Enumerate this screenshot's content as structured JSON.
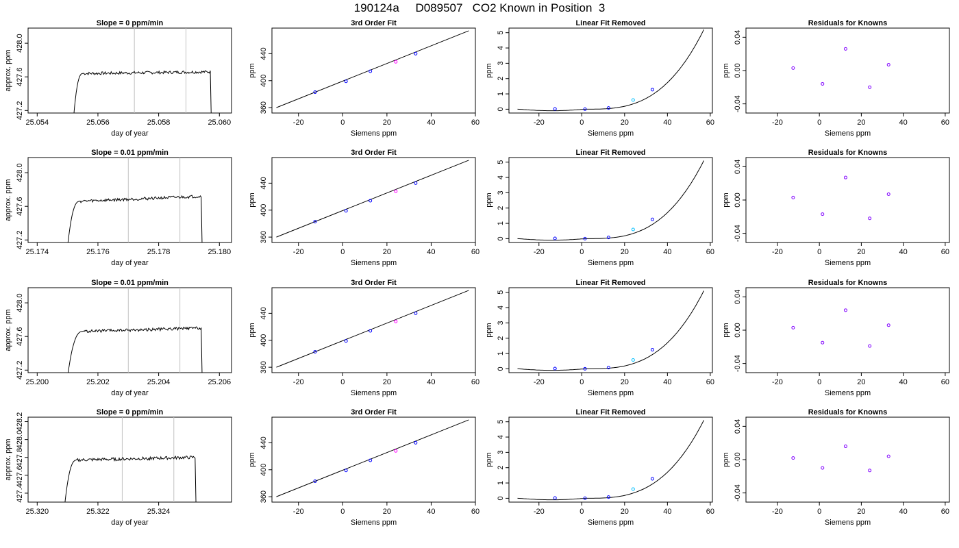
{
  "page_title": "190124a     D089507   CO2 Known in Position  3",
  "chart_data": [
    {
      "panel": "trace",
      "row": 0,
      "type": "line",
      "title": "Slope =  0  ppm/min",
      "xlabel": "day of year",
      "ylabel": "approx. ppm",
      "xlim": [
        25.0537,
        25.0604
      ],
      "ylim": [
        427.17,
        428.18
      ],
      "xticks": [
        25.054,
        25.056,
        25.058,
        25.06
      ],
      "xticklabels": [
        "25.054",
        "25.056",
        "25.058",
        "25.060"
      ],
      "yticks": [
        427.2,
        427.6,
        428.0
      ],
      "yticklabels": [
        "427.2",
        "427.6",
        "428.0"
      ],
      "vlines": [
        25.0572,
        25.0589
      ],
      "start": 25.0552,
      "rise_end": 25.0555,
      "end": 25.0597,
      "level": 427.64,
      "peak": 427.66,
      "drop_to": 427.15,
      "colors": {
        "trace": "#000000",
        "vline": "#c0c0c0"
      }
    },
    {
      "panel": "fit",
      "row": 0,
      "type": "line",
      "title": "3rd Order Fit",
      "xlabel": "Siemens ppm",
      "ylabel": "ppm",
      "xlim": [
        -32,
        60
      ],
      "ylim": [
        352,
        478
      ],
      "xticks": [
        -20,
        0,
        20,
        40,
        60
      ],
      "yticks": [
        360,
        400,
        440
      ],
      "points": [
        {
          "x": -12.5,
          "y": 383
        },
        {
          "x": 1.5,
          "y": 399
        },
        {
          "x": 12.5,
          "y": 414
        },
        {
          "x": 24.0,
          "y": 428
        },
        {
          "x": 33.0,
          "y": 440
        }
      ],
      "line": {
        "x0": -30,
        "y0": 360,
        "x1": 57,
        "y1": 474
      },
      "colors": {
        "line": "#000000",
        "point": "#0000ff",
        "highlight": "#ff00ff"
      }
    },
    {
      "panel": "linear_removed",
      "row": 0,
      "type": "line",
      "title": "Linear Fit Removed",
      "xlabel": "Siemens ppm",
      "ylabel": "ppm",
      "xlim": [
        -34,
        61
      ],
      "ylim": [
        -0.25,
        5.3
      ],
      "xticks": [
        -20,
        0,
        20,
        40,
        60
      ],
      "yticks": [
        0,
        1,
        2,
        3,
        4,
        5
      ],
      "points": [
        {
          "x": -12.5,
          "y": 0.02
        },
        {
          "x": 1.5,
          "y": 0.0
        },
        {
          "x": 12.5,
          "y": 0.08
        },
        {
          "x": 24.0,
          "y": 0.6
        },
        {
          "x": 33.0,
          "y": 1.28
        }
      ],
      "curve": {
        "x_start": -30,
        "x_end": 57,
        "y_end": 5.2
      },
      "colors": {
        "curve": "#000000",
        "point": "#0000ff",
        "highlight": "#00bfff"
      }
    },
    {
      "panel": "residuals",
      "row": 0,
      "type": "scatter",
      "title": "Residuals for Knowns",
      "xlabel": "Siemens ppm",
      "ylabel": "ppm",
      "xlim": [
        -35,
        62
      ],
      "ylim": [
        -0.051,
        0.051
      ],
      "xticks": [
        -20,
        0,
        20,
        40,
        60
      ],
      "yticks": [
        -0.04,
        0.0,
        0.04
      ],
      "yticklabels": [
        "-0.04",
        "0.00",
        "0.04"
      ],
      "points": [
        {
          "x": -12.5,
          "y": 0.003
        },
        {
          "x": 1.5,
          "y": -0.016
        },
        {
          "x": 12.5,
          "y": 0.026
        },
        {
          "x": 24.0,
          "y": -0.02
        },
        {
          "x": 33.0,
          "y": 0.007
        }
      ],
      "colors": {
        "point": "#8000ff"
      }
    },
    {
      "panel": "trace",
      "row": 1,
      "type": "line",
      "title": "Slope =  0.01  ppm/min",
      "xlabel": "day of year",
      "ylabel": "approx. ppm",
      "xlim": [
        25.1737,
        25.1804
      ],
      "ylim": [
        427.17,
        428.18
      ],
      "xticks": [
        25.174,
        25.176,
        25.178,
        25.18
      ],
      "xticklabels": [
        "25.174",
        "25.176",
        "25.178",
        "25.180"
      ],
      "yticks": [
        427.2,
        427.6,
        428.0
      ],
      "yticklabels": [
        "427.2",
        "427.6",
        "428.0"
      ],
      "vlines": [
        25.177,
        25.1787
      ],
      "start": 25.175,
      "rise_end": 25.1754,
      "end": 25.1794,
      "level": 427.66,
      "peak": 427.72,
      "drop_to": 427.15,
      "colors": {
        "trace": "#000000",
        "vline": "#c0c0c0"
      }
    },
    {
      "panel": "fit",
      "row": 1,
      "type": "line",
      "title": "3rd Order Fit",
      "xlabel": "Siemens ppm",
      "ylabel": "ppm",
      "xlim": [
        -32,
        60
      ],
      "ylim": [
        352,
        478
      ],
      "xticks": [
        -20,
        0,
        20,
        40,
        60
      ],
      "yticks": [
        360,
        400,
        440
      ],
      "points": [
        {
          "x": -12.5,
          "y": 383
        },
        {
          "x": 1.5,
          "y": 399
        },
        {
          "x": 12.5,
          "y": 414
        },
        {
          "x": 24.0,
          "y": 428
        },
        {
          "x": 33.0,
          "y": 440
        }
      ],
      "line": {
        "x0": -30,
        "y0": 360,
        "x1": 57,
        "y1": 474
      },
      "colors": {
        "line": "#000000",
        "point": "#0000ff",
        "highlight": "#ff00ff"
      }
    },
    {
      "panel": "linear_removed",
      "row": 1,
      "type": "line",
      "title": "Linear Fit Removed",
      "xlabel": "Siemens ppm",
      "ylabel": "ppm",
      "xlim": [
        -34,
        61
      ],
      "ylim": [
        -0.25,
        5.3
      ],
      "xticks": [
        -20,
        0,
        20,
        40,
        60
      ],
      "yticks": [
        0,
        1,
        2,
        3,
        4,
        5
      ],
      "points": [
        {
          "x": -12.5,
          "y": 0.02
        },
        {
          "x": 1.5,
          "y": 0.0
        },
        {
          "x": 12.5,
          "y": 0.08
        },
        {
          "x": 24.0,
          "y": 0.6
        },
        {
          "x": 33.0,
          "y": 1.26
        }
      ],
      "curve": {
        "x_start": -30,
        "x_end": 57,
        "y_end": 5.1
      },
      "colors": {
        "curve": "#000000",
        "point": "#0000ff",
        "highlight": "#00bfff"
      }
    },
    {
      "panel": "residuals",
      "row": 1,
      "type": "scatter",
      "title": "Residuals for Knowns",
      "xlabel": "Siemens ppm",
      "ylabel": "ppm",
      "xlim": [
        -35,
        62
      ],
      "ylim": [
        -0.051,
        0.051
      ],
      "xticks": [
        -20,
        0,
        20,
        40,
        60
      ],
      "yticks": [
        -0.04,
        0.0,
        0.04
      ],
      "yticklabels": [
        "-0.04",
        "0.00",
        "0.04"
      ],
      "points": [
        {
          "x": -12.5,
          "y": 0.003
        },
        {
          "x": 1.5,
          "y": -0.017
        },
        {
          "x": 12.5,
          "y": 0.027
        },
        {
          "x": 24.0,
          "y": -0.022
        },
        {
          "x": 33.0,
          "y": 0.007
        }
      ],
      "colors": {
        "point": "#8000ff"
      }
    },
    {
      "panel": "trace",
      "row": 2,
      "type": "line",
      "title": "Slope =  0.01  ppm/min",
      "xlabel": "day of year",
      "ylabel": "approx. ppm",
      "xlim": [
        25.1997,
        25.2064
      ],
      "ylim": [
        427.17,
        428.18
      ],
      "xticks": [
        25.2,
        25.202,
        25.204,
        25.206
      ],
      "xticklabels": [
        "25.200",
        "25.202",
        "25.204",
        "25.206"
      ],
      "yticks": [
        427.2,
        427.6,
        428.0
      ],
      "yticklabels": [
        "427.2",
        "427.6",
        "428.0"
      ],
      "vlines": [
        25.203,
        25.2047
      ],
      "start": 25.201,
      "rise_end": 25.2015,
      "end": 25.2054,
      "level": 427.66,
      "peak": 427.7,
      "drop_to": 427.15,
      "colors": {
        "trace": "#000000",
        "vline": "#c0c0c0"
      }
    },
    {
      "panel": "fit",
      "row": 2,
      "type": "line",
      "title": "3rd Order Fit",
      "xlabel": "Siemens ppm",
      "ylabel": "ppm",
      "xlim": [
        -32,
        60
      ],
      "ylim": [
        352,
        478
      ],
      "xticks": [
        -20,
        0,
        20,
        40,
        60
      ],
      "yticks": [
        360,
        400,
        440
      ],
      "points": [
        {
          "x": -12.5,
          "y": 383
        },
        {
          "x": 1.5,
          "y": 399
        },
        {
          "x": 12.5,
          "y": 414
        },
        {
          "x": 24.0,
          "y": 428
        },
        {
          "x": 33.0,
          "y": 440
        }
      ],
      "line": {
        "x0": -30,
        "y0": 360,
        "x1": 57,
        "y1": 474
      },
      "colors": {
        "line": "#000000",
        "point": "#0000ff",
        "highlight": "#ff00ff"
      }
    },
    {
      "panel": "linear_removed",
      "row": 2,
      "type": "line",
      "title": "Linear Fit Removed",
      "xlabel": "Siemens ppm",
      "ylabel": "ppm",
      "xlim": [
        -34,
        61
      ],
      "ylim": [
        -0.25,
        5.3
      ],
      "xticks": [
        -20,
        0,
        20,
        40,
        60
      ],
      "yticks": [
        0,
        1,
        2,
        3,
        4,
        5
      ],
      "points": [
        {
          "x": -12.5,
          "y": 0.02
        },
        {
          "x": 1.5,
          "y": 0.0
        },
        {
          "x": 12.5,
          "y": 0.08
        },
        {
          "x": 24.0,
          "y": 0.58
        },
        {
          "x": 33.0,
          "y": 1.25
        }
      ],
      "curve": {
        "x_start": -30,
        "x_end": 57,
        "y_end": 5.1
      },
      "colors": {
        "curve": "#000000",
        "point": "#0000ff",
        "highlight": "#00bfff"
      }
    },
    {
      "panel": "residuals",
      "row": 2,
      "type": "scatter",
      "title": "Residuals for Knowns",
      "xlabel": "Siemens ppm",
      "ylabel": "ppm",
      "xlim": [
        -35,
        62
      ],
      "ylim": [
        -0.051,
        0.051
      ],
      "xticks": [
        -20,
        0,
        20,
        40,
        60
      ],
      "yticks": [
        -0.04,
        0.0,
        0.04
      ],
      "yticklabels": [
        "-0.04",
        "0.00",
        "0.04"
      ],
      "points": [
        {
          "x": -12.5,
          "y": 0.003
        },
        {
          "x": 1.5,
          "y": -0.015
        },
        {
          "x": 12.5,
          "y": 0.024
        },
        {
          "x": 24.0,
          "y": -0.019
        },
        {
          "x": 33.0,
          "y": 0.006
        }
      ],
      "colors": {
        "point": "#8000ff"
      }
    },
    {
      "panel": "trace",
      "row": 3,
      "type": "line",
      "title": "Slope =  0  ppm/min",
      "xlabel": "day of year",
      "ylabel": "approx. ppm",
      "xlim": [
        25.3197,
        25.3264
      ],
      "ylim": [
        427.3,
        428.25
      ],
      "xticks": [
        25.32,
        25.322,
        25.324
      ],
      "xticklabels": [
        "25.320",
        "25.322",
        "25.324"
      ],
      "yticks": [
        427.4,
        427.6,
        427.8,
        428.0,
        428.2
      ],
      "yticklabels": [
        "427.4",
        "427.6",
        "427.8",
        "428.0",
        "428.2"
      ],
      "vlines": [
        25.3228,
        25.3245
      ],
      "start": 25.3209,
      "rise_end": 25.3213,
      "end": 25.3252,
      "level": 427.77,
      "peak": 427.8,
      "drop_to": 427.28,
      "colors": {
        "trace": "#000000",
        "vline": "#c0c0c0"
      }
    },
    {
      "panel": "fit",
      "row": 3,
      "type": "line",
      "title": "3rd Order Fit",
      "xlabel": "Siemens ppm",
      "ylabel": "ppm",
      "xlim": [
        -32,
        60
      ],
      "ylim": [
        352,
        478
      ],
      "xticks": [
        -20,
        0,
        20,
        40,
        60
      ],
      "yticks": [
        360,
        400,
        440
      ],
      "points": [
        {
          "x": -12.5,
          "y": 383
        },
        {
          "x": 1.5,
          "y": 399
        },
        {
          "x": 12.5,
          "y": 414
        },
        {
          "x": 24.0,
          "y": 428
        },
        {
          "x": 33.0,
          "y": 440
        }
      ],
      "line": {
        "x0": -30,
        "y0": 360,
        "x1": 57,
        "y1": 474
      },
      "colors": {
        "line": "#000000",
        "point": "#0000ff",
        "highlight": "#ff00ff"
      }
    },
    {
      "panel": "linear_removed",
      "row": 3,
      "type": "line",
      "title": "Linear Fit Removed",
      "xlabel": "Siemens ppm",
      "ylabel": "ppm",
      "xlim": [
        -34,
        61
      ],
      "ylim": [
        -0.25,
        5.3
      ],
      "xticks": [
        -20,
        0,
        20,
        40,
        60
      ],
      "yticks": [
        0,
        1,
        2,
        3,
        4,
        5
      ],
      "points": [
        {
          "x": -12.5,
          "y": 0.02
        },
        {
          "x": 1.5,
          "y": 0.0
        },
        {
          "x": 12.5,
          "y": 0.08
        },
        {
          "x": 24.0,
          "y": 0.6
        },
        {
          "x": 33.0,
          "y": 1.27
        }
      ],
      "curve": {
        "x_start": -30,
        "x_end": 57,
        "y_end": 5.1
      },
      "colors": {
        "curve": "#000000",
        "point": "#0000ff",
        "highlight": "#00bfff"
      }
    },
    {
      "panel": "residuals",
      "row": 3,
      "type": "scatter",
      "title": "Residuals for Knowns",
      "xlabel": "Siemens ppm",
      "ylabel": "ppm",
      "xlim": [
        -35,
        62
      ],
      "ylim": [
        -0.051,
        0.051
      ],
      "xticks": [
        -20,
        0,
        20,
        40,
        60
      ],
      "yticks": [
        -0.04,
        0.0,
        0.04
      ],
      "yticklabels": [
        "-0.04",
        "0.00",
        "0.04"
      ],
      "points": [
        {
          "x": -12.5,
          "y": 0.002
        },
        {
          "x": 1.5,
          "y": -0.01
        },
        {
          "x": 12.5,
          "y": 0.016
        },
        {
          "x": 24.0,
          "y": -0.013
        },
        {
          "x": 33.0,
          "y": 0.004
        }
      ],
      "colors": {
        "point": "#8000ff"
      }
    }
  ]
}
